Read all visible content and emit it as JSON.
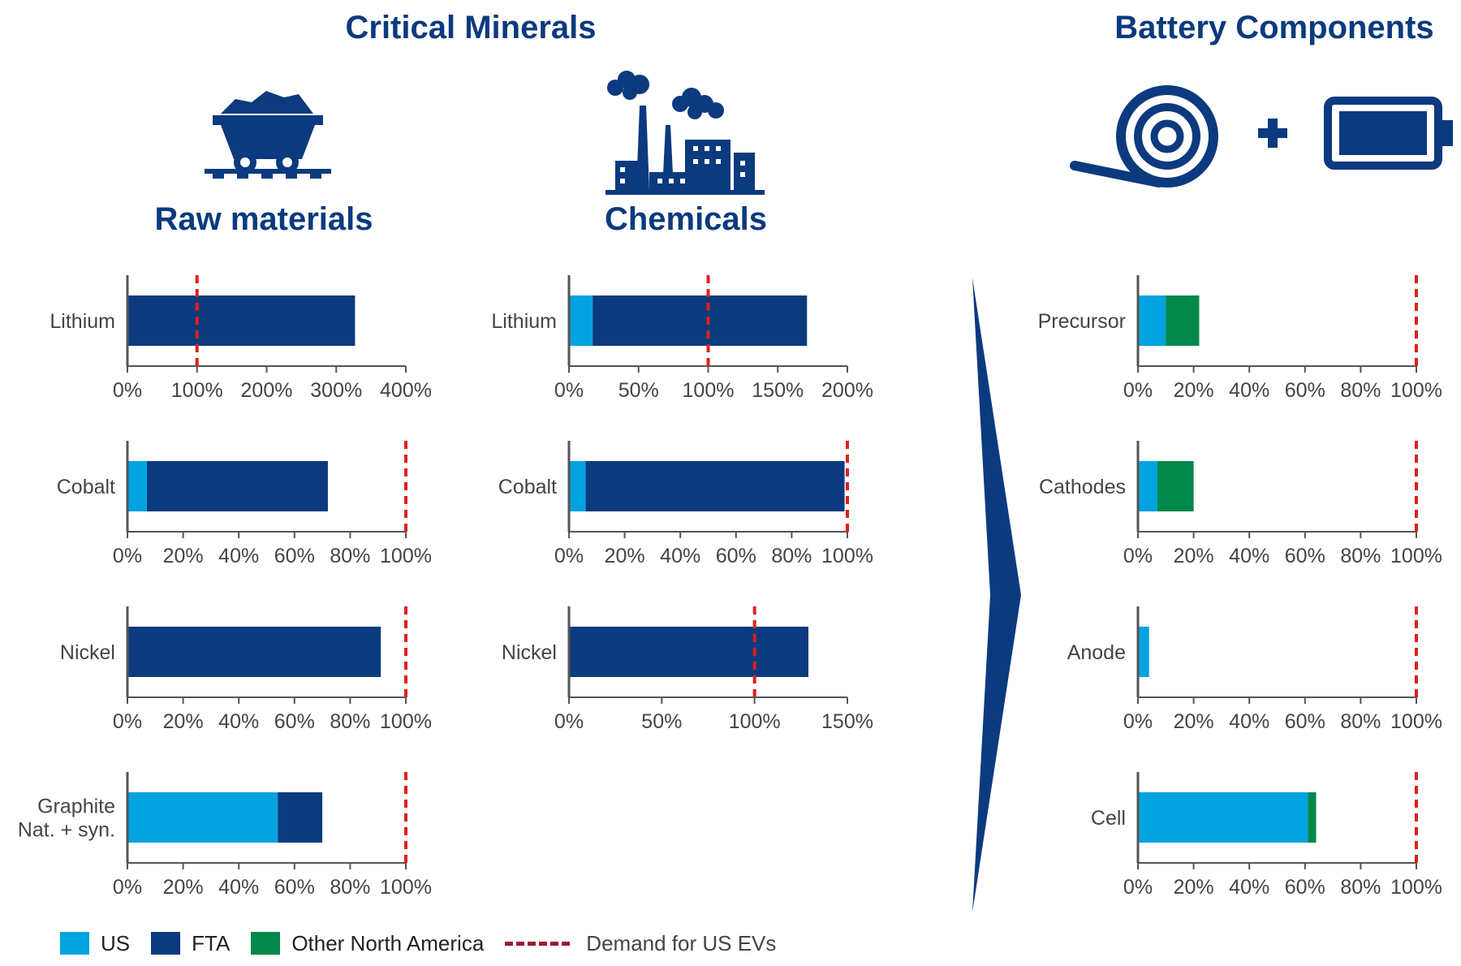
{
  "headings": {
    "critical_minerals": "Critical Minerals",
    "battery_components": "Battery Components",
    "raw_materials": "Raw materials",
    "chemicals": "Chemicals"
  },
  "icons": [
    "mine-cart-icon",
    "factory-icon",
    "foil-roll-icon",
    "plus-icon",
    "battery-icon",
    "chevron-arrow-icon"
  ],
  "colors": {
    "US": "#00a3e0",
    "FTA": "#0b3a7e",
    "Other North America": "#00884a",
    "demand": "#e0201b",
    "axis": "#555555",
    "heading": "#0b3a7e"
  },
  "legend": {
    "us": "US",
    "fta": "FTA",
    "other_na": "Other North America",
    "demand": "Demand for US EVs"
  },
  "chart_data": [
    {
      "type": "bar",
      "panel": "Raw materials",
      "category": "Lithium",
      "xlim": [
        0,
        4
      ],
      "ticks": [
        "0%",
        "100%",
        "200%",
        "300%",
        "400%"
      ],
      "demand": 1.0,
      "series": [
        {
          "name": "US",
          "value": 0.01
        },
        {
          "name": "FTA",
          "value": 3.26
        }
      ]
    },
    {
      "type": "bar",
      "panel": "Raw materials",
      "category": "Cobalt",
      "xlim": [
        0,
        1
      ],
      "ticks": [
        "0%",
        "20%",
        "40%",
        "60%",
        "80%",
        "100%"
      ],
      "demand": 1.0,
      "series": [
        {
          "name": "US",
          "value": 0.07
        },
        {
          "name": "FTA",
          "value": 0.65
        }
      ]
    },
    {
      "type": "bar",
      "panel": "Raw materials",
      "category": "Nickel",
      "xlim": [
        0,
        1
      ],
      "ticks": [
        "0%",
        "20%",
        "40%",
        "60%",
        "80%",
        "100%"
      ],
      "demand": 1.0,
      "series": [
        {
          "name": "FTA",
          "value": 0.91
        }
      ]
    },
    {
      "type": "bar",
      "panel": "Raw materials",
      "category": "Graphite\nNat. + syn.",
      "xlim": [
        0,
        1
      ],
      "ticks": [
        "0%",
        "20%",
        "40%",
        "60%",
        "80%",
        "100%"
      ],
      "demand": 1.0,
      "series": [
        {
          "name": "US",
          "value": 0.54
        },
        {
          "name": "FTA",
          "value": 0.16
        }
      ]
    },
    {
      "type": "bar",
      "panel": "Chemicals",
      "category": "Lithium",
      "xlim": [
        0,
        2
      ],
      "ticks": [
        "0%",
        "50%",
        "100%",
        "150%",
        "200%"
      ],
      "demand": 1.0,
      "series": [
        {
          "name": "US",
          "value": 0.17
        },
        {
          "name": "FTA",
          "value": 1.54
        }
      ]
    },
    {
      "type": "bar",
      "panel": "Chemicals",
      "category": "Cobalt",
      "xlim": [
        0,
        1
      ],
      "ticks": [
        "0%",
        "20%",
        "40%",
        "60%",
        "80%",
        "100%"
      ],
      "demand": 1.0,
      "series": [
        {
          "name": "US",
          "value": 0.06
        },
        {
          "name": "FTA",
          "value": 0.93
        }
      ]
    },
    {
      "type": "bar",
      "panel": "Chemicals",
      "category": "Nickel",
      "xlim": [
        0,
        1.5
      ],
      "ticks": [
        "0%",
        "50%",
        "100%",
        "150%"
      ],
      "demand": 1.0,
      "series": [
        {
          "name": "FTA",
          "value": 1.29
        }
      ]
    },
    {
      "type": "bar",
      "panel": "Battery Components",
      "category": "Precursor",
      "xlim": [
        0,
        1
      ],
      "ticks": [
        "0%",
        "20%",
        "40%",
        "60%",
        "80%",
        "100%"
      ],
      "demand": 1.0,
      "series": [
        {
          "name": "US",
          "value": 0.1
        },
        {
          "name": "Other North America",
          "value": 0.12
        }
      ]
    },
    {
      "type": "bar",
      "panel": "Battery Components",
      "category": "Cathodes",
      "xlim": [
        0,
        1
      ],
      "ticks": [
        "0%",
        "20%",
        "40%",
        "60%",
        "80%",
        "100%"
      ],
      "demand": 1.0,
      "series": [
        {
          "name": "US",
          "value": 0.07
        },
        {
          "name": "Other North America",
          "value": 0.13
        }
      ]
    },
    {
      "type": "bar",
      "panel": "Battery Components",
      "category": "Anode",
      "xlim": [
        0,
        1
      ],
      "ticks": [
        "0%",
        "20%",
        "40%",
        "60%",
        "80%",
        "100%"
      ],
      "demand": 1.0,
      "series": [
        {
          "name": "US",
          "value": 0.04
        }
      ]
    },
    {
      "type": "bar",
      "panel": "Battery Components",
      "category": "Cell",
      "xlim": [
        0,
        1
      ],
      "ticks": [
        "0%",
        "20%",
        "40%",
        "60%",
        "80%",
        "100%"
      ],
      "demand": 1.0,
      "series": [
        {
          "name": "US",
          "value": 0.61
        },
        {
          "name": "Other North America",
          "value": 0.03
        }
      ]
    }
  ]
}
